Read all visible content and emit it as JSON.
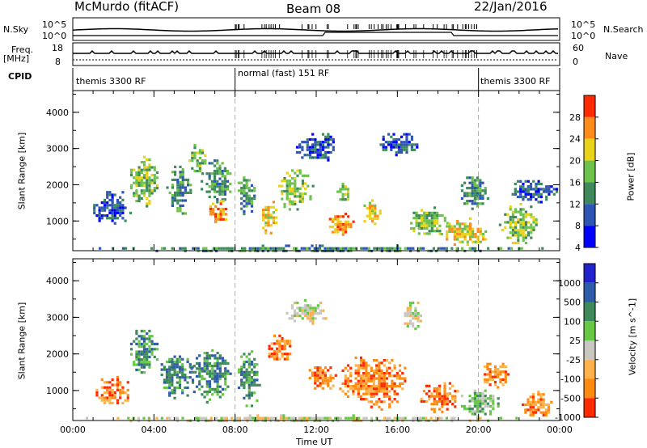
{
  "header": {
    "title": "McMurdo (fitACF)",
    "beam": "Beam 08",
    "date": "22/Jan/2016"
  },
  "strip_labels": {
    "nsky": "N.Sky",
    "nsky_top": "10^5",
    "nsky_bottom": "10^0",
    "nsearch": "N.Search",
    "freq": "Freq.",
    "freq_unit": "[MHz]",
    "freq_top": "18",
    "freq_bottom": "8",
    "nave": "Nave",
    "nave_top": "60",
    "nave_bottom": "0",
    "cpid": "CPID"
  },
  "cpid_segments": [
    {
      "label": "themis 3300 RF",
      "start_hour": 0,
      "end_hour": 8
    },
    {
      "label": "normal (fast) 151 RF",
      "start_hour": 8,
      "end_hour": 20
    },
    {
      "label": "themis 3300 RF",
      "start_hour": 20,
      "end_hour": 24
    }
  ],
  "x_axis": {
    "label": "Time UT",
    "ticks": [
      "00:00",
      "04:00",
      "08:00",
      "12:00",
      "16:00",
      "20:00",
      "00:00"
    ],
    "range_hours": [
      0,
      24
    ]
  },
  "y_axis": {
    "label": "Slant Range [km]",
    "ticks": [
      "1000",
      "2000",
      "3000",
      "4000"
    ],
    "range_km": [
      180,
      4600
    ]
  },
  "chart_data": [
    {
      "type": "heatmap",
      "name": "power",
      "colorbar_label": "Power [dB]",
      "colorbar_ticks": [
        "4",
        "8",
        "12",
        "16",
        "20",
        "24",
        "28"
      ],
      "colors": [
        "#0000ff",
        "#2e54b4",
        "#3e8a5a",
        "#6cc24a",
        "#e8d21a",
        "#ff8c1a",
        "#ff2a00"
      ],
      "range": [
        0,
        30
      ],
      "regions": [
        {
          "t0": 0.0,
          "t1": 24.0,
          "r0": 180,
          "r1": 350,
          "level": 2
        },
        {
          "t0": 1.0,
          "t1": 2.8,
          "r0": 900,
          "r1": 1900,
          "level": 1
        },
        {
          "t0": 2.7,
          "t1": 4.2,
          "r0": 1400,
          "r1": 2800,
          "level": 3
        },
        {
          "t0": 4.6,
          "t1": 5.8,
          "r0": 1200,
          "r1": 2600,
          "level": 2
        },
        {
          "t0": 5.7,
          "t1": 6.6,
          "r0": 2300,
          "r1": 3200,
          "level": 3
        },
        {
          "t0": 6.3,
          "t1": 7.8,
          "r0": 1500,
          "r1": 2700,
          "level": 2
        },
        {
          "t0": 6.6,
          "t1": 7.6,
          "r0": 850,
          "r1": 1650,
          "level": 5
        },
        {
          "t0": 8.0,
          "t1": 9.0,
          "r0": 1200,
          "r1": 2300,
          "level": 2
        },
        {
          "t0": 9.2,
          "t1": 10.0,
          "r0": 600,
          "r1": 1700,
          "level": 4
        },
        {
          "t0": 10.0,
          "t1": 11.8,
          "r0": 1300,
          "r1": 2500,
          "level": 3
        },
        {
          "t0": 11.0,
          "t1": 13.0,
          "r0": 2600,
          "r1": 3500,
          "level": 1
        },
        {
          "t0": 12.5,
          "t1": 13.8,
          "r0": 600,
          "r1": 1300,
          "level": 5
        },
        {
          "t0": 13.0,
          "t1": 13.6,
          "r0": 1500,
          "r1": 2200,
          "level": 3
        },
        {
          "t0": 14.2,
          "t1": 15.2,
          "r0": 800,
          "r1": 1600,
          "level": 4
        },
        {
          "t0": 15.0,
          "t1": 17.0,
          "r0": 2800,
          "r1": 3500,
          "level": 1
        },
        {
          "t0": 16.5,
          "t1": 18.5,
          "r0": 600,
          "r1": 1400,
          "level": 3
        },
        {
          "t0": 18.0,
          "t1": 20.5,
          "r0": 350,
          "r1": 1100,
          "level": 4
        },
        {
          "t0": 19.0,
          "t1": 20.5,
          "r0": 1300,
          "r1": 2300,
          "level": 2
        },
        {
          "t0": 21.0,
          "t1": 23.0,
          "r0": 400,
          "r1": 1500,
          "level": 3
        },
        {
          "t0": 21.5,
          "t1": 23.8,
          "r0": 1500,
          "r1": 2200,
          "level": 1
        }
      ]
    },
    {
      "type": "heatmap",
      "name": "velocity",
      "colorbar_label": "Velocity [m s^-1]",
      "colorbar_ticks": [
        "1000",
        "500",
        "100",
        "25",
        "-25",
        "-100",
        "-500",
        "-1000"
      ],
      "colors": [
        "#2222cc",
        "#2e5ca8",
        "#3e8a5a",
        "#66c844",
        "#c8c8c0",
        "#ffb24a",
        "#ff8a10",
        "#ff2a00"
      ],
      "range": [
        -1000,
        1000
      ],
      "regions": [
        {
          "t0": 0.0,
          "t1": 24.0,
          "r0": 180,
          "r1": 350,
          "level": 4
        },
        {
          "t0": 1.0,
          "t1": 2.8,
          "r0": 600,
          "r1": 1400,
          "level": 6
        },
        {
          "t0": 2.7,
          "t1": 4.2,
          "r0": 1400,
          "r1": 2800,
          "level": 2
        },
        {
          "t0": 4.2,
          "t1": 6.0,
          "r0": 800,
          "r1": 2100,
          "level": 2
        },
        {
          "t0": 5.8,
          "t1": 7.8,
          "r0": 700,
          "r1": 2200,
          "level": 2
        },
        {
          "t0": 8.0,
          "t1": 9.2,
          "r0": 600,
          "r1": 2100,
          "level": 2
        },
        {
          "t0": 9.5,
          "t1": 10.8,
          "r0": 1700,
          "r1": 2600,
          "level": 6
        },
        {
          "t0": 10.5,
          "t1": 12.5,
          "r0": 2800,
          "r1": 3500,
          "level": 4
        },
        {
          "t0": 11.5,
          "t1": 13.0,
          "r0": 1000,
          "r1": 1800,
          "level": 6
        },
        {
          "t0": 13.0,
          "t1": 16.5,
          "r0": 500,
          "r1": 2000,
          "level": 6
        },
        {
          "t0": 16.2,
          "t1": 17.2,
          "r0": 2700,
          "r1": 3500,
          "level": 4
        },
        {
          "t0": 17.0,
          "t1": 19.0,
          "r0": 400,
          "r1": 1300,
          "level": 6
        },
        {
          "t0": 19.0,
          "t1": 21.0,
          "r0": 300,
          "r1": 1100,
          "level": 3
        },
        {
          "t0": 20.0,
          "t1": 21.5,
          "r0": 1100,
          "r1": 1900,
          "level": 6
        },
        {
          "t0": 22.0,
          "t1": 23.8,
          "r0": 300,
          "r1": 1000,
          "level": 6
        }
      ]
    }
  ]
}
